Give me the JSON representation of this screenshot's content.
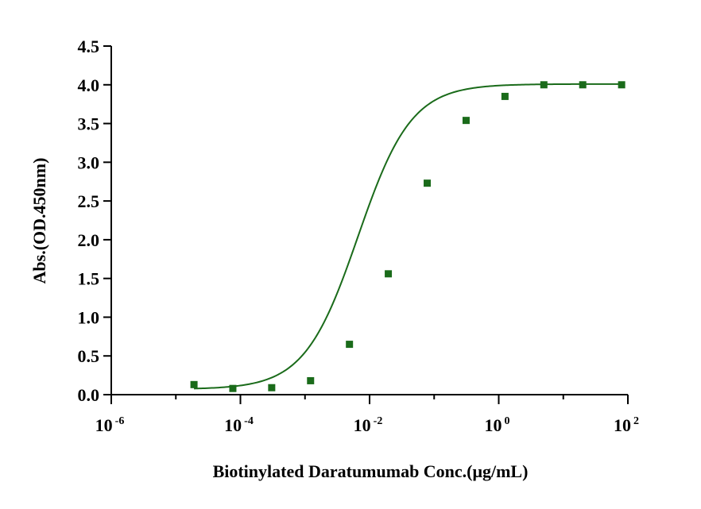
{
  "chart_data": {
    "type": "scatter",
    "title": "",
    "xlabel": "Biotinylated Daratumumab Conc.(μg/mL)",
    "ylabel": "Abs.(OD.450nm)",
    "xscale": "log",
    "xlim_exp": [
      -6,
      2
    ],
    "ylim": [
      0,
      4.5
    ],
    "x_ticks": [
      {
        "exp": -6,
        "base": "10",
        "sup": "-6"
      },
      {
        "exp": -4,
        "base": "10",
        "sup": "-4"
      },
      {
        "exp": -2,
        "base": "10",
        "sup": "-2"
      },
      {
        "exp": 0,
        "base": "10",
        "sup": "0"
      },
      {
        "exp": 2,
        "base": "10",
        "sup": "2"
      }
    ],
    "y_ticks": [
      "0.0",
      "0.5",
      "1.0",
      "1.5",
      "2.0",
      "2.5",
      "3.0",
      "3.5",
      "4.0",
      "4.5"
    ],
    "series": [
      {
        "name": "Biotinylated Daratumumab",
        "color": "#1a6b1a",
        "x": [
          1.91e-05,
          7.63e-05,
          0.000305,
          0.00122,
          0.00488,
          0.0195,
          0.0781,
          0.3125,
          1.25,
          5,
          20,
          80
        ],
        "y": [
          0.13,
          0.08,
          0.09,
          0.18,
          0.65,
          1.56,
          2.73,
          3.54,
          3.85,
          4.0,
          4.0,
          4.0
        ]
      }
    ],
    "fit": {
      "model": "4PL",
      "bottom": 0.07,
      "top": 4.01,
      "logEC50": -2.18,
      "hill": 1.05,
      "x_range": [
        1.91e-05,
        80
      ]
    }
  }
}
